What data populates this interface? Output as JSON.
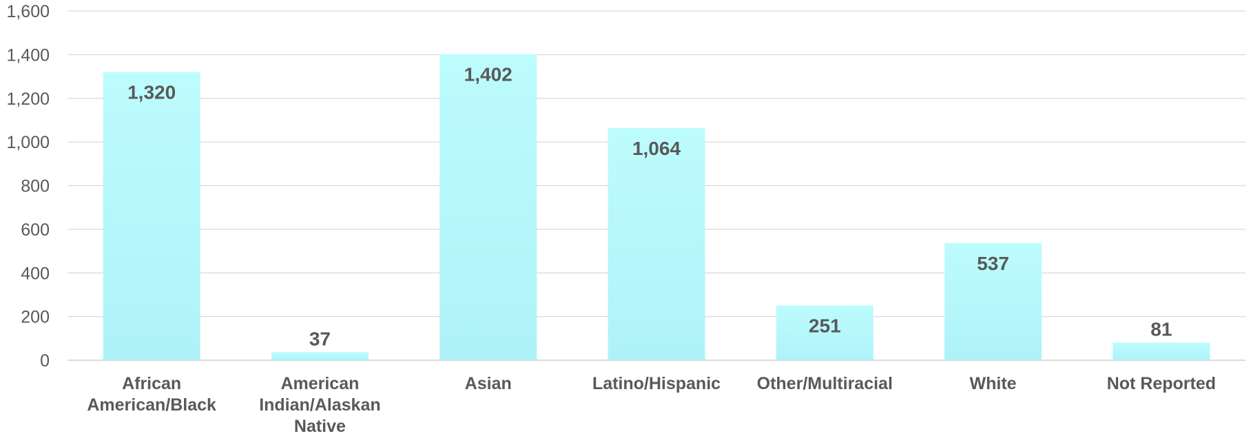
{
  "chart_data": {
    "type": "bar",
    "title": "",
    "xlabel": "",
    "ylabel": "",
    "categories": [
      "African American/Black",
      "American Indian/Alaskan Native",
      "Asian",
      "Latino/Hispanic",
      "Other/Multiracial",
      "White",
      "Not Reported"
    ],
    "category_lines": [
      [
        "African",
        "American/Black"
      ],
      [
        "American",
        "Indian/Alaskan",
        "Native"
      ],
      [
        "Asian"
      ],
      [
        "Latino/Hispanic"
      ],
      [
        "Other/Multiracial"
      ],
      [
        "White"
      ],
      [
        "Not Reported"
      ]
    ],
    "values": [
      1320,
      37,
      1402,
      1064,
      251,
      537,
      81
    ],
    "value_labels": [
      "1,320",
      "37",
      "1,402",
      "1,064",
      "251",
      "537",
      "81"
    ],
    "yticks": [
      0,
      200,
      400,
      600,
      800,
      1000,
      1200,
      1400,
      1600
    ],
    "ytick_labels": [
      "0",
      "200",
      "400",
      "600",
      "800",
      "1,000",
      "1,200",
      "1,400",
      "1,600"
    ],
    "ylim": [
      0,
      1600
    ],
    "grid": true,
    "legend": "none",
    "colors": {
      "bar_top": "#bdfcfd",
      "bar_bottom": "#aef2f9",
      "grid": "#d9d9d9",
      "text": "#595959"
    }
  }
}
